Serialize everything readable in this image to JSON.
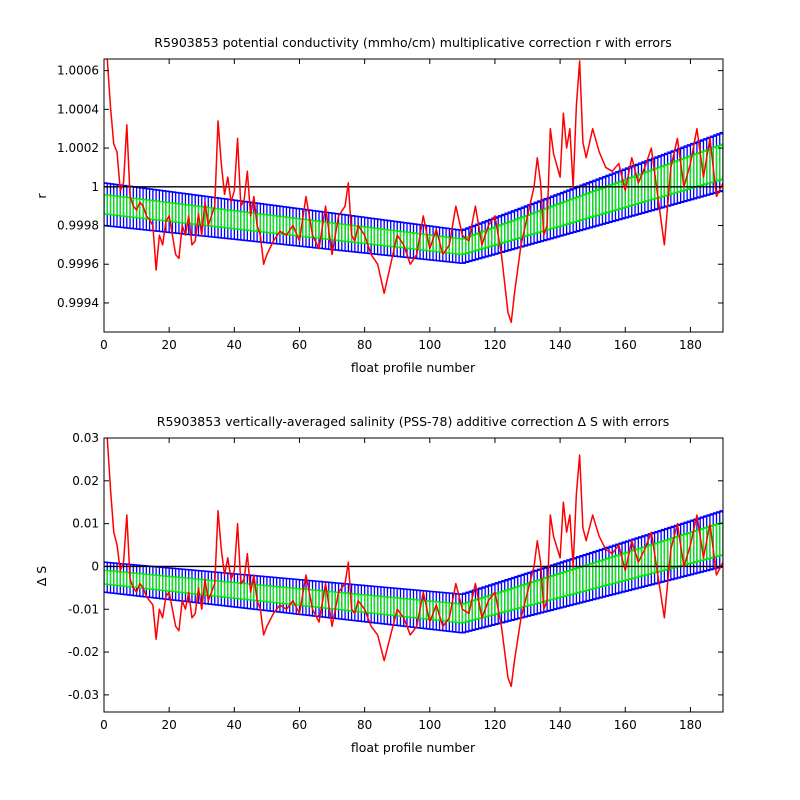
{
  "chart_data": [
    {
      "type": "line",
      "title": "R5903853 potential conductivity (mmho/cm) multiplicative correction r with errors",
      "xlabel": "float profile number",
      "ylabel": "r",
      "xlim": [
        0,
        190
      ],
      "ylim": [
        0.99925,
        1.00066
      ],
      "x_ticks": [
        0,
        20,
        40,
        60,
        80,
        100,
        120,
        140,
        160,
        180
      ],
      "x_tick_labels": [
        "0",
        "20",
        "40",
        "60",
        "80",
        "100",
        "120",
        "140",
        "160",
        "180"
      ],
      "y_ticks": [
        0.9994,
        0.9996,
        0.9998,
        1.0,
        1.0002,
        1.0004,
        1.0006
      ],
      "y_tick_labels": [
        "0.9994",
        "0.9996",
        "0.9998",
        "1",
        "1.0002",
        "1.0004",
        "1.0006"
      ],
      "reference_line": 1.0,
      "fit_center": [
        [
          0,
          0.99991
        ],
        [
          110,
          0.99969
        ],
        [
          190,
          1.00013
        ]
      ],
      "error_band_blue": [
        [
          0,
          0.00011
        ],
        [
          110,
          8.5e-05
        ],
        [
          190,
          0.00015
        ]
      ],
      "error_band_green": [
        [
          0,
          5e-05
        ],
        [
          110,
          4e-05
        ],
        [
          190,
          9e-05
        ]
      ],
      "series": [
        {
          "color": "#ff0000",
          "x": [
            1,
            2,
            3,
            4,
            5,
            6,
            7,
            8,
            9,
            10,
            11,
            12,
            13,
            14,
            15,
            16,
            17,
            18,
            19,
            20,
            21,
            22,
            23,
            24,
            25,
            26,
            27,
            28,
            29,
            30,
            31,
            32,
            33,
            34,
            35,
            36,
            37,
            38,
            39,
            40,
            41,
            42,
            43,
            44,
            45,
            46,
            47,
            48,
            49,
            50,
            52,
            54,
            56,
            58,
            60,
            62,
            64,
            66,
            68,
            70,
            72,
            74,
            75,
            76,
            77,
            78,
            80,
            82,
            84,
            86,
            88,
            90,
            92,
            94,
            96,
            98,
            100,
            102,
            104,
            106,
            108,
            110,
            112,
            114,
            116,
            118,
            120,
            122,
            124,
            125,
            126,
            128,
            130,
            132,
            133,
            134,
            135,
            136,
            137,
            138,
            140,
            141,
            142,
            143,
            144,
            145,
            146,
            147,
            148,
            150,
            152,
            154,
            156,
            158,
            160,
            162,
            164,
            166,
            168,
            170,
            172,
            174,
            176,
            178,
            180,
            182,
            184,
            186,
            188,
            190
          ],
          "y": [
            1.00066,
            1.00041,
            1.00022,
            1.00018,
            0.99998,
            1.00002,
            1.00032,
            0.99995,
            0.9999,
            0.99988,
            0.99992,
            0.9999,
            0.99985,
            0.99983,
            0.9998,
            0.99957,
            0.99975,
            0.9997,
            0.99982,
            0.99985,
            0.99975,
            0.99965,
            0.99963,
            0.9998,
            0.99975,
            0.99985,
            0.9997,
            0.99972,
            0.99986,
            0.99975,
            0.99992,
            0.9998,
            0.99985,
            0.9999,
            1.00034,
            1.00012,
            0.99996,
            1.00005,
            0.99992,
            0.99998,
            1.00025,
            0.9999,
            0.99993,
            1.00008,
            0.99985,
            0.99995,
            0.9998,
            0.99975,
            0.9996,
            0.99965,
            0.99972,
            0.99977,
            0.99975,
            0.9998,
            0.99972,
            0.99995,
            0.99975,
            0.99968,
            0.9999,
            0.99965,
            0.99985,
            0.9999,
            1.00002,
            0.99975,
            0.99972,
            0.9998,
            0.99975,
            0.99965,
            0.9996,
            0.99945,
            0.9996,
            0.99975,
            0.9997,
            0.9996,
            0.99965,
            0.99985,
            0.99968,
            0.99978,
            0.99965,
            0.9997,
            0.9999,
            0.99975,
            0.99972,
            0.9999,
            0.9997,
            0.9998,
            0.99985,
            0.99965,
            0.99935,
            0.9993,
            0.99945,
            0.9997,
            0.99985,
            1.0,
            1.00015,
            1.00002,
            0.99975,
            0.9998,
            1.0003,
            1.00017,
            1.00005,
            1.00038,
            1.0002,
            1.0003,
            1.0,
            1.00042,
            1.00065,
            1.00023,
            1.00015,
            1.0003,
            1.00018,
            1.0001,
            1.00008,
            1.00012,
            0.99998,
            1.00015,
            1.00002,
            1.0001,
            1.0002,
            0.99995,
            0.9997,
            1.0001,
            1.00025,
            1.0,
            1.00012,
            1.0003,
            1.00005,
            1.00025,
            0.99995,
            1.00002
          ]
        }
      ]
    },
    {
      "type": "line",
      "title": "R5903853 vertically-averaged salinity (PSS-78) additive correction Δ S with errors",
      "xlabel": "float profile number",
      "ylabel": "Δ S",
      "xlim": [
        0,
        190
      ],
      "ylim": [
        -0.034,
        0.03
      ],
      "x_ticks": [
        0,
        20,
        40,
        60,
        80,
        100,
        120,
        140,
        160,
        180
      ],
      "x_tick_labels": [
        "0",
        "20",
        "40",
        "60",
        "80",
        "100",
        "120",
        "140",
        "160",
        "180"
      ],
      "y_ticks": [
        -0.03,
        -0.02,
        -0.01,
        0,
        0.01,
        0.02,
        0.03
      ],
      "y_tick_labels": [
        "-0.03",
        "-0.02",
        "-0.01",
        "0",
        "0.01",
        "0.02",
        "0.03"
      ],
      "reference_line": 0,
      "fit_center": [
        [
          0,
          -0.0025
        ],
        [
          110,
          -0.011
        ],
        [
          190,
          0.0065
        ]
      ],
      "error_band_blue": [
        [
          0,
          0.0035
        ],
        [
          110,
          0.0045
        ],
        [
          190,
          0.0065
        ]
      ],
      "error_band_green": [
        [
          0,
          0.0016
        ],
        [
          110,
          0.0022
        ],
        [
          190,
          0.0038
        ]
      ],
      "series": [
        {
          "color": "#ff0000",
          "x": [
            1,
            2,
            3,
            4,
            5,
            6,
            7,
            8,
            9,
            10,
            11,
            12,
            13,
            14,
            15,
            16,
            17,
            18,
            19,
            20,
            21,
            22,
            23,
            24,
            25,
            26,
            27,
            28,
            29,
            30,
            31,
            32,
            33,
            34,
            35,
            36,
            37,
            38,
            39,
            40,
            41,
            42,
            43,
            44,
            45,
            46,
            47,
            48,
            49,
            50,
            52,
            54,
            56,
            58,
            60,
            62,
            64,
            66,
            68,
            70,
            72,
            74,
            75,
            76,
            77,
            78,
            80,
            82,
            84,
            86,
            88,
            90,
            92,
            94,
            96,
            98,
            100,
            102,
            104,
            106,
            108,
            110,
            112,
            114,
            116,
            118,
            120,
            122,
            124,
            125,
            126,
            128,
            130,
            132,
            133,
            134,
            135,
            136,
            137,
            138,
            140,
            141,
            142,
            143,
            144,
            145,
            146,
            147,
            148,
            150,
            152,
            154,
            156,
            158,
            160,
            162,
            164,
            166,
            168,
            170,
            172,
            174,
            176,
            178,
            180,
            182,
            184,
            186,
            188,
            190
          ],
          "y": [
            0.03,
            0.018,
            0.008,
            0.005,
            -0.001,
            0.001,
            0.012,
            -0.003,
            -0.005,
            -0.006,
            -0.004,
            -0.005,
            -0.007,
            -0.008,
            -0.009,
            -0.017,
            -0.01,
            -0.012,
            -0.007,
            -0.006,
            -0.01,
            -0.014,
            -0.015,
            -0.008,
            -0.01,
            -0.006,
            -0.012,
            -0.011,
            -0.005,
            -0.01,
            -0.003,
            -0.008,
            -0.006,
            -0.004,
            0.013,
            0.004,
            -0.002,
            0.002,
            -0.003,
            -0.001,
            0.01,
            -0.004,
            -0.003,
            0.003,
            -0.006,
            -0.002,
            -0.008,
            -0.01,
            -0.016,
            -0.014,
            -0.011,
            -0.009,
            -0.01,
            -0.008,
            -0.011,
            -0.002,
            -0.01,
            -0.013,
            -0.004,
            -0.014,
            -0.006,
            -0.004,
            0.001,
            -0.01,
            -0.011,
            -0.008,
            -0.01,
            -0.014,
            -0.016,
            -0.022,
            -0.016,
            -0.01,
            -0.012,
            -0.016,
            -0.014,
            -0.006,
            -0.013,
            -0.009,
            -0.014,
            -0.012,
            -0.004,
            -0.01,
            -0.011,
            -0.004,
            -0.012,
            -0.008,
            -0.006,
            -0.014,
            -0.026,
            -0.028,
            -0.022,
            -0.012,
            -0.006,
            0.0,
            0.006,
            0.001,
            -0.01,
            -0.008,
            0.012,
            0.007,
            0.002,
            0.015,
            0.008,
            0.012,
            0.0,
            0.017,
            0.026,
            0.009,
            0.006,
            0.012,
            0.007,
            0.004,
            0.003,
            0.005,
            -0.001,
            0.006,
            0.001,
            0.004,
            0.008,
            -0.002,
            -0.012,
            0.004,
            0.01,
            0.0,
            0.005,
            0.012,
            0.002,
            0.01,
            -0.002,
            0.001
          ]
        }
      ]
    }
  ]
}
